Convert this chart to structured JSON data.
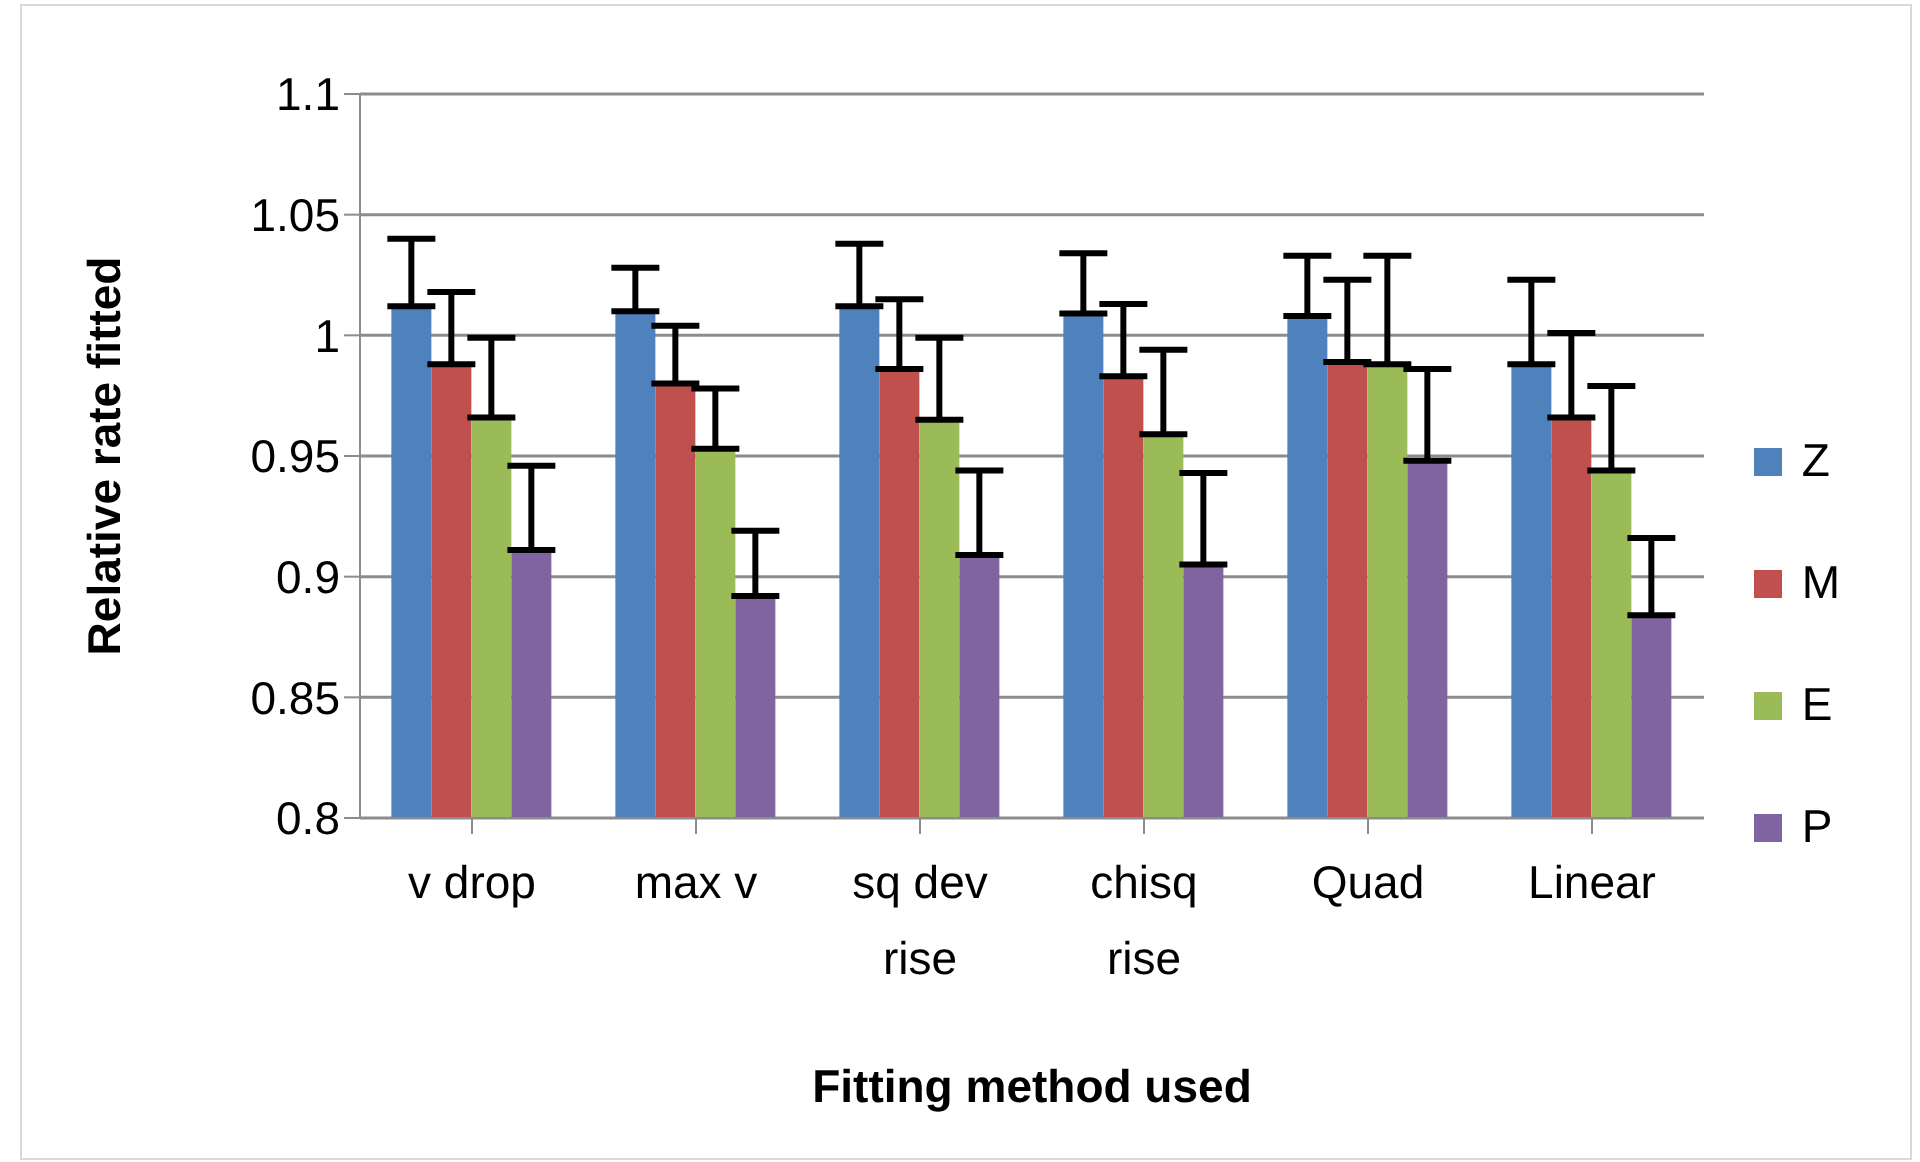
{
  "chart_data": {
    "type": "bar",
    "xlabel": "Fitting method used",
    "ylabel": "Relative rate fitted",
    "categories": [
      "v drop",
      "max v",
      "sq dev rise",
      "chisq rise",
      "Quad",
      "Linear"
    ],
    "series": [
      {
        "name": "Z",
        "color": "#4f81bd",
        "values": [
          1.012,
          1.01,
          1.012,
          1.009,
          1.008,
          0.988
        ],
        "errors": [
          [
            1.012,
            1.04
          ],
          [
            1.01,
            1.028
          ],
          [
            1.012,
            1.038
          ],
          [
            1.009,
            1.034
          ],
          [
            1.008,
            1.033
          ],
          [
            0.988,
            1.023
          ]
        ]
      },
      {
        "name": "M",
        "color": "#c0504d",
        "values": [
          0.988,
          0.98,
          0.986,
          0.983,
          0.989,
          0.966
        ],
        "errors": [
          [
            0.988,
            1.018
          ],
          [
            0.98,
            1.004
          ],
          [
            0.986,
            1.015
          ],
          [
            0.983,
            1.013
          ],
          [
            0.989,
            1.023
          ],
          [
            0.966,
            1.001
          ]
        ]
      },
      {
        "name": "E",
        "color": "#9bbb59",
        "values": [
          0.966,
          0.953,
          0.965,
          0.959,
          0.988,
          0.944
        ],
        "errors": [
          [
            0.966,
            0.999
          ],
          [
            0.953,
            0.978
          ],
          [
            0.965,
            0.999
          ],
          [
            0.959,
            0.994
          ],
          [
            0.988,
            1.033
          ],
          [
            0.944,
            0.979
          ]
        ]
      },
      {
        "name": "P",
        "color": "#8064a2",
        "values": [
          0.911,
          0.892,
          0.909,
          0.905,
          0.948,
          0.884
        ],
        "errors": [
          [
            0.911,
            0.946
          ],
          [
            0.892,
            0.919
          ],
          [
            0.909,
            0.944
          ],
          [
            0.905,
            0.943
          ],
          [
            0.948,
            0.986
          ],
          [
            0.884,
            0.916
          ]
        ]
      }
    ],
    "ylim": [
      0.8,
      1.1
    ],
    "yticks": [
      0.8,
      0.85,
      0.9,
      0.95,
      1,
      1.05,
      1.1
    ],
    "grid": "y",
    "legend": "right"
  }
}
